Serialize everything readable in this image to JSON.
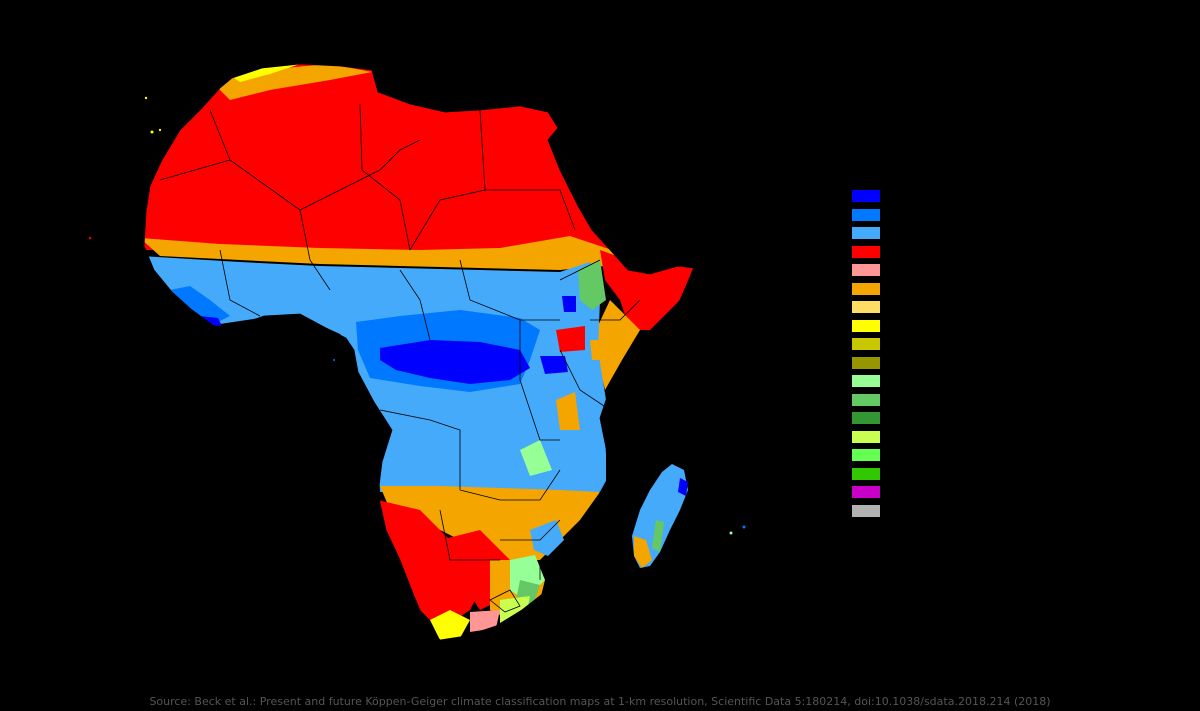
{
  "map": {
    "region": "Africa",
    "classification": "Köppen-Geiger",
    "colors": {
      "background": "#000000",
      "Af": "#0000FF",
      "Am": "#0078FF",
      "Aw": "#46AAFA",
      "BWh": "#FF0000",
      "BWk": "#FF9696",
      "BSh": "#F5A500",
      "BSk": "#FFDC64",
      "Csa": "#FFFF00",
      "Csb": "#C8C800",
      "Csc": "#969600",
      "Cwa": "#96FF96",
      "Cwb": "#64C864",
      "Cwc": "#329632",
      "Cfa": "#C8FF50",
      "Cfb": "#64FF50",
      "Cfc": "#32C800",
      "Dsa": "#C800C8",
      "ET": "#B2B2B2",
      "border": "#000000"
    }
  },
  "legend": {
    "swatches": [
      {
        "color": "#0000FF"
      },
      {
        "color": "#0078FF"
      },
      {
        "color": "#46AAFA"
      },
      {
        "color": "#FF0000"
      },
      {
        "color": "#FF9696"
      },
      {
        "color": "#F5A500"
      },
      {
        "color": "#FFDC64"
      },
      {
        "color": "#FFFF00"
      },
      {
        "color": "#C8C800"
      },
      {
        "color": "#969600"
      },
      {
        "color": "#96FF96"
      },
      {
        "color": "#64C864"
      },
      {
        "color": "#329632"
      },
      {
        "color": "#C8FF50"
      },
      {
        "color": "#64FF50"
      },
      {
        "color": "#32C800"
      },
      {
        "color": "#C800C8"
      },
      {
        "color": "#B2B2B2"
      }
    ]
  },
  "source": "Source: Beck et al.: Present and future Köppen-Geiger climate classification maps at 1-km resolution, Scientific Data 5:180214, doi:10.1038/sdata.2018.214 (2018)"
}
